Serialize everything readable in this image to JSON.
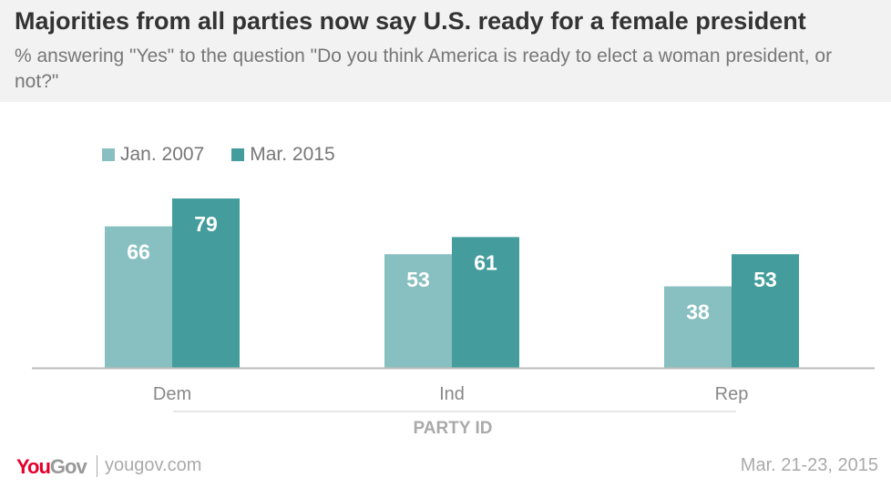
{
  "header": {
    "title": "Majorities from all parties now say U.S. ready for a female president",
    "subtitle": "% answering \"Yes\" to the question \"Do you think America is ready to elect a woman president, or not?\""
  },
  "chart_data": {
    "type": "bar",
    "categories": [
      "Dem",
      "Ind",
      "Rep"
    ],
    "series": [
      {
        "name": "Jan. 2007",
        "values": [
          66,
          53,
          38
        ],
        "color": "#88bfc0"
      },
      {
        "name": "Mar. 2015",
        "values": [
          79,
          61,
          53
        ],
        "color": "#449c9c"
      }
    ],
    "xlabel": "PARTY ID",
    "ylabel": "",
    "ylim": [
      0,
      100
    ],
    "grid": false,
    "legend": "top-left"
  },
  "footer": {
    "logo_you": "You",
    "logo_gov": "Gov",
    "url": "yougov.com",
    "date": "Mar. 21-23, 2015"
  }
}
